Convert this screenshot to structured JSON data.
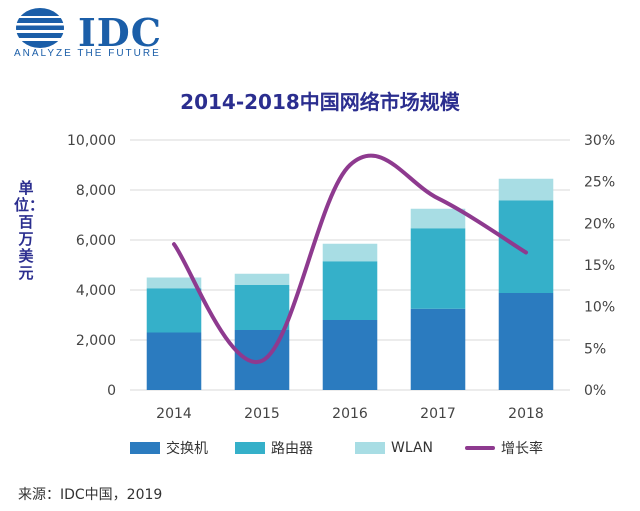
{
  "logo": {
    "name": "IDC",
    "tagline": "ANALYZE THE FUTURE"
  },
  "chart_data": {
    "type": "bar",
    "stacked": true,
    "title": "2014-2018中国网络市场规模",
    "ylabel": "单位：百万美元",
    "categories": [
      "2014",
      "2015",
      "2016",
      "2017",
      "2018"
    ],
    "ylim": [
      0,
      10000
    ],
    "yticks": [
      "0",
      "2,000",
      "4,000",
      "6,000",
      "8,000",
      "10,000"
    ],
    "y2lim": [
      0,
      30
    ],
    "y2ticks": [
      "0%",
      "5%",
      "10%",
      "15%",
      "20%",
      "25%",
      "30%"
    ],
    "series": [
      {
        "name": "交换机",
        "values": [
          2300,
          2400,
          2800,
          3250,
          3880
        ],
        "color": "#2b7bbf"
      },
      {
        "name": "路由器",
        "values": [
          1770,
          1800,
          2350,
          3220,
          3700
        ],
        "color": "#35b0c9"
      },
      {
        "name": "WLAN",
        "values": [
          430,
          450,
          700,
          780,
          870
        ],
        "color": "#a8dde4"
      }
    ],
    "line_series": {
      "name": "增长率",
      "axis": "right",
      "values": [
        17.5,
        3.5,
        27,
        23,
        16.5
      ],
      "color": "#8e3a8f"
    },
    "grid": true,
    "legend_position": "bottom"
  },
  "source": "来源：IDC中国，2019"
}
